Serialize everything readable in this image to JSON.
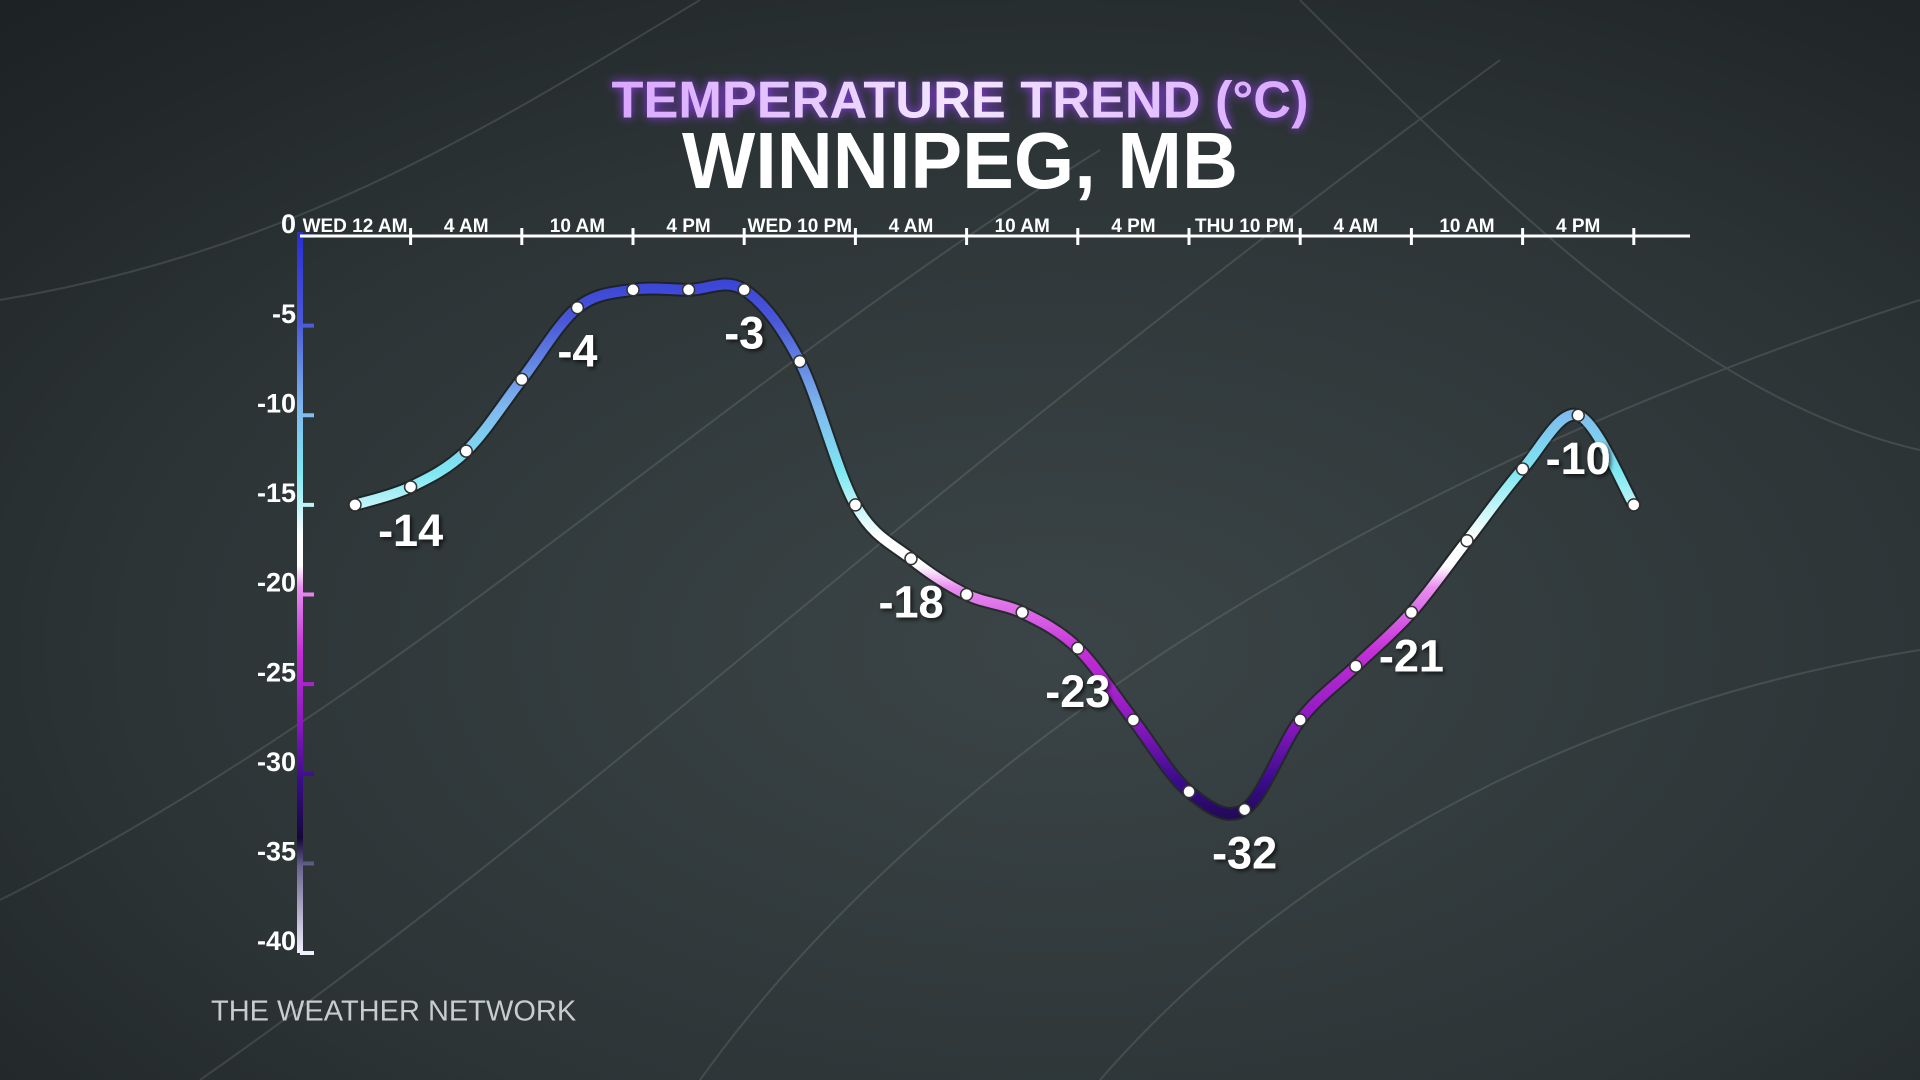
{
  "chart_data": {
    "type": "line",
    "title": "TEMPERATURE TREND (°C)",
    "subtitle": "WINNIPEG, MB",
    "source": "THE WEATHER NETWORK",
    "categories": [
      "WED 12 AM",
      null,
      "4 AM",
      null,
      "10 AM",
      null,
      "4 PM",
      null,
      "WED 10 PM",
      null,
      "4 AM",
      null,
      "10 AM",
      null,
      "4 PM",
      null,
      "THU 10 PM",
      null,
      "4 AM",
      null,
      "10 AM",
      null,
      "4 PM",
      null
    ],
    "values": [
      -15,
      -14,
      -12,
      -8,
      -4,
      -3,
      -3,
      -3,
      -7,
      -15,
      -18,
      -20,
      -21,
      -23,
      -27,
      -31,
      -32,
      -27,
      -24,
      -21,
      -17,
      -13,
      -10,
      -15
    ],
    "value_labels": [
      null,
      "-14",
      null,
      null,
      "-4",
      null,
      null,
      "-3",
      null,
      null,
      "-18",
      null,
      null,
      "-23",
      null,
      null,
      "-32",
      null,
      null,
      "-21",
      null,
      null,
      "-10",
      null
    ],
    "ylim": [
      0,
      -40
    ],
    "yticks": [
      0,
      -5,
      -10,
      -15,
      -20,
      -25,
      -30,
      -35,
      -40
    ],
    "marker_color": "#ffffff"
  }
}
